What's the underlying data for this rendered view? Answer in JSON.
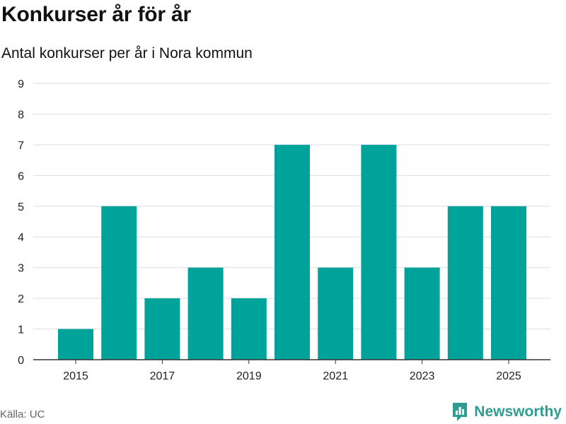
{
  "header": {
    "title": "Konkurser år för år",
    "subtitle": "Antal konkurser per år i Nora kommun"
  },
  "footer": {
    "source": "Källa: UC",
    "brand": "Newsworthy",
    "brand_icon": "newsworthy-logo-icon"
  },
  "colors": {
    "bar": "#00a39a",
    "grid": "#dddddd",
    "axis": "#333333",
    "brand": "#2f9c93"
  },
  "chart_data": {
    "type": "bar",
    "categories": [
      "2015",
      "2016",
      "2017",
      "2018",
      "2019",
      "2020",
      "2021",
      "2022",
      "2023",
      "2024",
      "2025"
    ],
    "values": [
      1,
      5,
      2,
      3,
      2,
      7,
      3,
      7,
      3,
      5,
      5
    ],
    "x_tick_labels": [
      "2015",
      "2017",
      "2019",
      "2021",
      "2023",
      "2025"
    ],
    "y_ticks": [
      0,
      1,
      2,
      3,
      4,
      5,
      6,
      7,
      8,
      9
    ],
    "ylim": [
      0,
      9
    ],
    "title": "Konkurser år för år",
    "subtitle": "Antal konkurser per år i Nora kommun",
    "xlabel": "",
    "ylabel": "",
    "grid": true,
    "legend": "none"
  }
}
